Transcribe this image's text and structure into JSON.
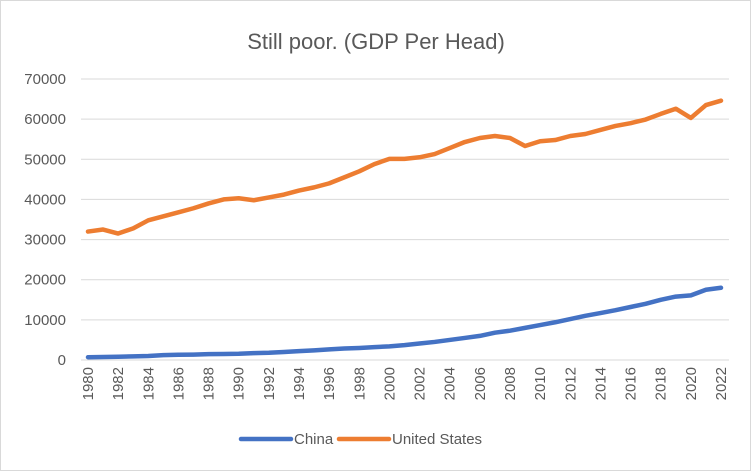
{
  "chart_data": {
    "type": "line",
    "title": "Still poor. (GDP Per Head)",
    "xlabel": "",
    "ylabel": "",
    "ylim": [
      0,
      70000
    ],
    "yticks": [
      0,
      10000,
      20000,
      30000,
      40000,
      50000,
      60000,
      70000
    ],
    "grid": true,
    "legend": "bottom",
    "x": [
      1980,
      1981,
      1982,
      1983,
      1984,
      1985,
      1986,
      1987,
      1988,
      1989,
      1990,
      1991,
      1992,
      1993,
      1994,
      1995,
      1996,
      1997,
      1998,
      1999,
      2000,
      2001,
      2002,
      2003,
      2004,
      2005,
      2006,
      2007,
      2008,
      2009,
      2010,
      2011,
      2012,
      2013,
      2014,
      2015,
      2016,
      2017,
      2018,
      2019,
      2020,
      2021,
      2022
    ],
    "xticks": [
      1980,
      1982,
      1984,
      1986,
      1988,
      1990,
      1992,
      1994,
      1996,
      1998,
      2000,
      2002,
      2004,
      2006,
      2008,
      2010,
      2012,
      2014,
      2016,
      2018,
      2020,
      2022
    ],
    "series": [
      {
        "name": "China",
        "color": "#4472c4",
        "values": [
          700,
          750,
          800,
          900,
          1000,
          1200,
          1300,
          1350,
          1450,
          1500,
          1550,
          1700,
          1800,
          2000,
          2200,
          2400,
          2650,
          2850,
          3000,
          3200,
          3400,
          3700,
          4100,
          4500,
          5000,
          5500,
          6000,
          6800,
          7300,
          8000,
          8700,
          9400,
          10200,
          11000,
          11700,
          12400,
          13200,
          14000,
          15000,
          15800,
          16100,
          17500,
          18000
        ]
      },
      {
        "name": "United States",
        "color": "#ed7d31",
        "values": [
          32000,
          32500,
          31500,
          32800,
          34800,
          35800,
          36800,
          37800,
          39000,
          40000,
          40300,
          39800,
          40500,
          41200,
          42200,
          43000,
          44000,
          45500,
          47000,
          48800,
          50100,
          50100,
          50500,
          51300,
          52800,
          54300,
          55300,
          55800,
          55300,
          53300,
          54500,
          54800,
          55800,
          56300,
          57300,
          58300,
          59000,
          59900,
          61300,
          62600,
          60300,
          63500,
          64600
        ]
      }
    ]
  }
}
